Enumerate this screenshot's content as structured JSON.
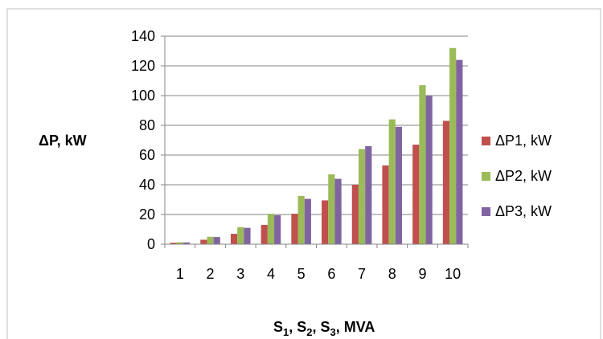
{
  "chart_data": {
    "type": "bar",
    "categories": [
      "1",
      "2",
      "3",
      "4",
      "5",
      "6",
      "7",
      "8",
      "9",
      "10"
    ],
    "series": [
      {
        "name": "ΔP1, kW",
        "color": "#c0504d",
        "values": [
          1,
          3,
          7,
          13,
          20.5,
          29.5,
          40,
          53,
          67,
          83
        ]
      },
      {
        "name": "ΔP2, kW",
        "color": "#9bbb59",
        "values": [
          1.3,
          5,
          11.5,
          20.5,
          32.5,
          47,
          64,
          84,
          107,
          132
        ]
      },
      {
        "name": "ΔP3, kW",
        "color": "#8064a2",
        "values": [
          1.2,
          4.8,
          11,
          19.5,
          30.5,
          44,
          66,
          79,
          100,
          124
        ]
      }
    ],
    "yticks": [
      "0",
      "20",
      "40",
      "60",
      "80",
      "100",
      "120",
      "140"
    ],
    "ylim": [
      0,
      140
    ],
    "ylabel": "ΔP, kW",
    "xlabel": {
      "parts": [
        {
          "base": "S",
          "sub": "1"
        },
        {
          "base": ", S",
          "sub": "2"
        },
        {
          "base": ", S",
          "sub": "3"
        },
        {
          "base": ", MVA",
          "sub": ""
        }
      ]
    },
    "grid": true,
    "legend_position": "right"
  }
}
